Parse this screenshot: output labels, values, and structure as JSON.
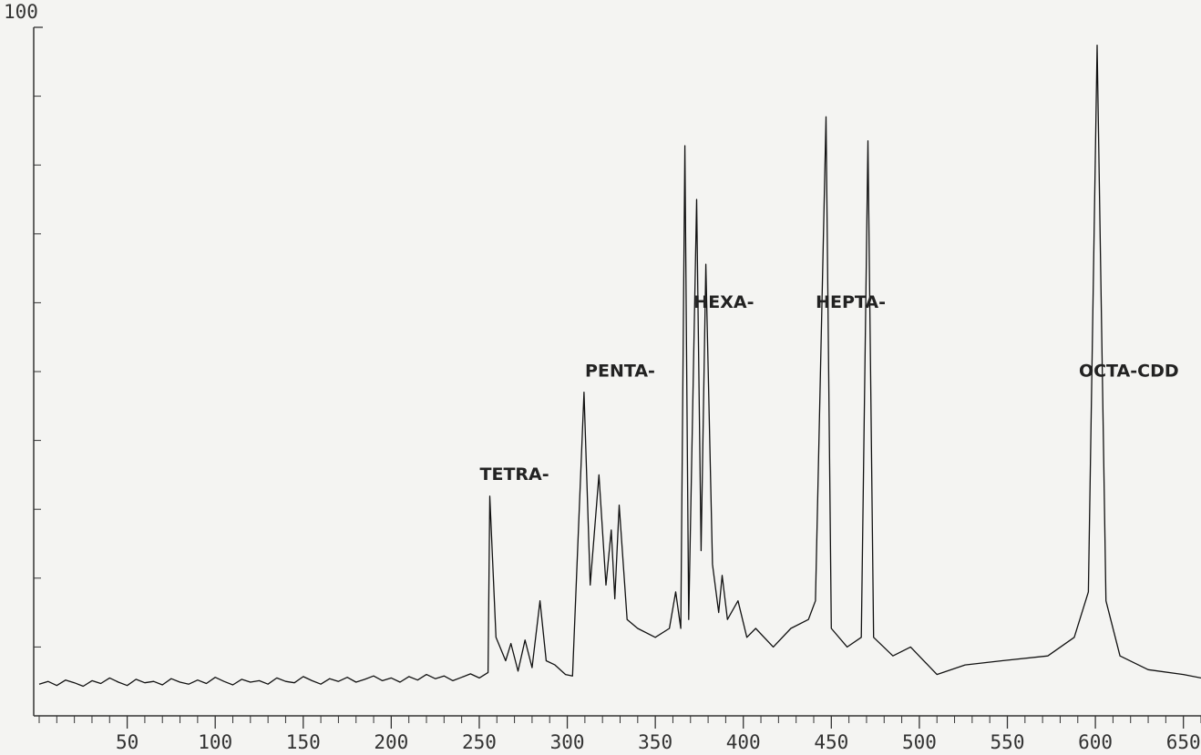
{
  "chart_data": {
    "type": "line",
    "series": [
      {
        "color": "#111111",
        "x": [
          0,
          5,
          10,
          15,
          20,
          25,
          30,
          35,
          40,
          45,
          50,
          55,
          60,
          65,
          70,
          75,
          80,
          85,
          90,
          95,
          100,
          105,
          110,
          115,
          120,
          125,
          130,
          135,
          140,
          145,
          150,
          155,
          160,
          165,
          170,
          175,
          180,
          185,
          190,
          195,
          200,
          205,
          210,
          215,
          220,
          225,
          230,
          235,
          240,
          245,
          250,
          255,
          256,
          259.5,
          265,
          268,
          272,
          276,
          280,
          284.5,
          288,
          293,
          299,
          303,
          309.5,
          313,
          318,
          322,
          325,
          327,
          329.5,
          334,
          340,
          350,
          358,
          361.6,
          364.5,
          366.8,
          369,
          373.5,
          376,
          378.7,
          382.5,
          386,
          388,
          391,
          397,
          402,
          407,
          417,
          427,
          437,
          441,
          447,
          450,
          459,
          467,
          470.8,
          474,
          485,
          495,
          510,
          526,
          547,
          573,
          588,
          596,
          601,
          606,
          614,
          630,
          650,
          660
        ],
        "values": [
          4.6,
          5.0,
          4.4,
          5.2,
          4.8,
          4.3,
          5.1,
          4.7,
          5.5,
          4.9,
          4.4,
          5.3,
          4.8,
          5.0,
          4.5,
          5.4,
          4.9,
          4.6,
          5.2,
          4.7,
          5.6,
          5.0,
          4.5,
          5.3,
          4.9,
          5.1,
          4.6,
          5.5,
          5.0,
          4.8,
          5.7,
          5.1,
          4.6,
          5.4,
          5.0,
          5.6,
          4.9,
          5.3,
          5.8,
          5.1,
          5.5,
          4.9,
          5.7,
          5.2,
          6.0,
          5.4,
          5.8,
          5.1,
          5.6,
          6.1,
          5.5,
          6.3,
          31.9,
          11.4,
          8,
          10.5,
          6.5,
          11,
          7,
          16.7,
          8,
          7.4,
          6,
          5.8,
          47,
          19,
          35,
          19,
          27,
          17,
          30.6,
          14,
          12.7,
          11.4,
          12.7,
          18,
          12.7,
          82.8,
          14,
          75,
          24,
          65.6,
          22,
          15,
          20.4,
          14,
          16.7,
          11.4,
          12.7,
          10,
          12.7,
          14,
          16.7,
          87,
          12.7,
          10,
          11.4,
          83.5,
          11.4,
          8.7,
          10,
          6,
          7.4,
          8,
          8.7,
          11.4,
          18,
          97.4,
          16.7,
          8.7,
          6.7,
          6,
          5.5
        ]
      }
    ],
    "annotations": [
      {
        "text": "TETRA-",
        "x": 270,
        "y": 35
      },
      {
        "text": "PENTA-",
        "x": 330,
        "y": 50
      },
      {
        "text": "HEXA-",
        "x": 389,
        "y": 60
      },
      {
        "text": "HEPTA-",
        "x": 461,
        "y": 60
      },
      {
        "text": "OCTA-CDD",
        "x": 619,
        "y": 50
      }
    ],
    "xlim": [
      0,
      660
    ],
    "ylim": [
      0,
      100
    ],
    "xticks": [
      50,
      100,
      150,
      200,
      250,
      300,
      350,
      400,
      450,
      500,
      550,
      600,
      650
    ],
    "xminorticks": [
      0,
      10,
      20,
      30,
      40,
      60,
      70,
      80,
      90,
      110,
      120,
      130,
      140,
      160,
      170,
      180,
      190,
      210,
      220,
      230,
      240,
      260,
      270,
      280,
      290,
      310,
      320,
      330,
      340,
      360,
      370,
      380,
      390,
      410,
      420,
      430,
      440,
      460,
      470,
      480,
      490,
      510,
      520,
      530,
      540,
      560,
      570,
      580,
      590,
      610,
      620,
      630,
      640,
      660
    ],
    "yticks": [
      100
    ],
    "yminorticks": [
      10,
      20,
      30,
      40,
      50,
      60,
      70,
      80,
      90
    ]
  }
}
